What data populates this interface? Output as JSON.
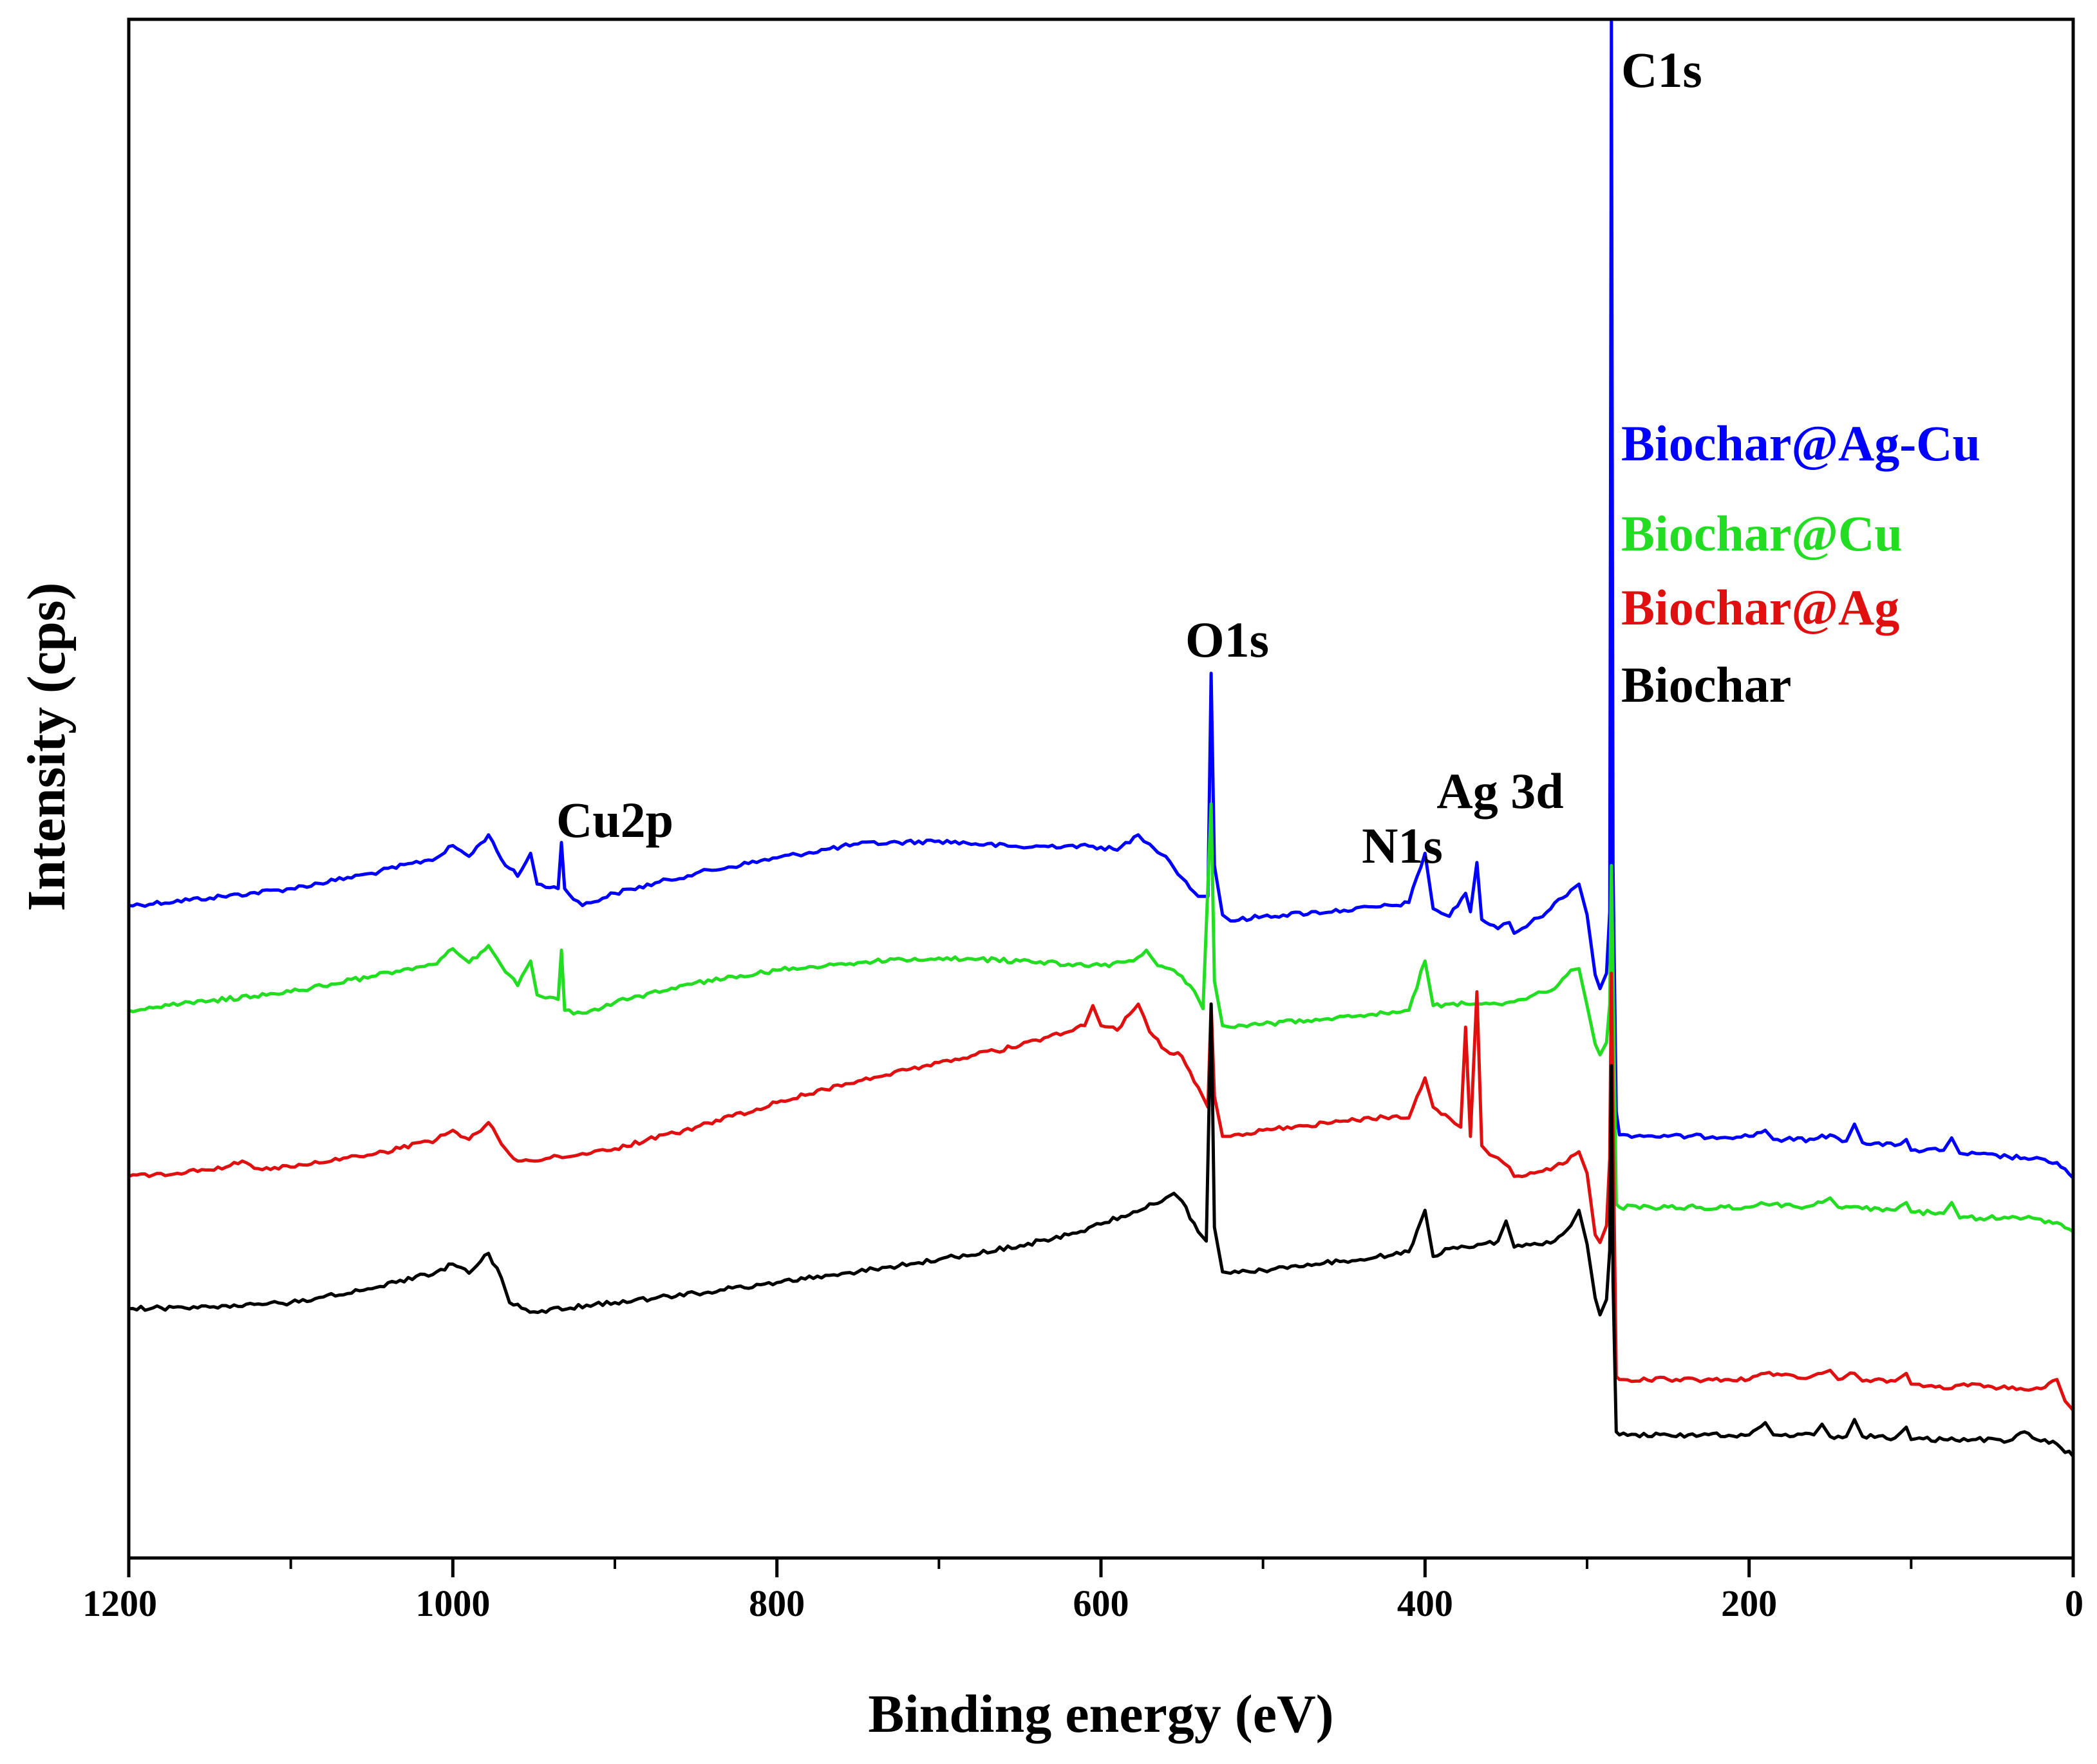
{
  "chart_data": {
    "type": "line",
    "title": "",
    "xlabel": "Binding energy (eV)",
    "ylabel": "Intensity (cps)",
    "xlim": [
      1200,
      0
    ],
    "ylim": [
      0,
      100
    ],
    "x_ticks": [
      1200,
      1000,
      800,
      600,
      400,
      200,
      0
    ],
    "y_ticks_shown": false,
    "legend": {
      "placement": "right, stacked top to bottom"
    },
    "annotations": [
      {
        "text": "C1s",
        "x": 284.8
      },
      {
        "text": "O1s",
        "x": 532
      },
      {
        "text": "Ag 3d",
        "x": 370
      },
      {
        "text": "N1s",
        "x": 400
      },
      {
        "text": "Cu2p",
        "x": 933
      }
    ],
    "series": [
      {
        "name": "Biochar@Ag-Cu",
        "color": "#0000ff",
        "points": [
          [
            1200,
            42.4
          ],
          [
            1150,
            42.9
          ],
          [
            1100,
            43.5
          ],
          [
            1050,
            44.5
          ],
          [
            1010,
            45.5
          ],
          [
            1000,
            46.3
          ],
          [
            990,
            45.6
          ],
          [
            978,
            47
          ],
          [
            970,
            45.4
          ],
          [
            960,
            44.3
          ],
          [
            952,
            45.8
          ],
          [
            948,
            43.8
          ],
          [
            935,
            43.5
          ],
          [
            933,
            46.5
          ],
          [
            931,
            43.5
          ],
          [
            920,
            42.4
          ],
          [
            900,
            43.2
          ],
          [
            850,
            44.5
          ],
          [
            800,
            45.5
          ],
          [
            750,
            46.4
          ],
          [
            700,
            46.6
          ],
          [
            650,
            46.2
          ],
          [
            620,
            46.3
          ],
          [
            600,
            46.2
          ],
          [
            590,
            46
          ],
          [
            577,
            47
          ],
          [
            570,
            46.4
          ],
          [
            560,
            45.6
          ],
          [
            550,
            44.2
          ],
          [
            540,
            43
          ],
          [
            534,
            43
          ],
          [
            532,
            57.5
          ],
          [
            530,
            45
          ],
          [
            525,
            41.8
          ],
          [
            520,
            41.4
          ],
          [
            500,
            41.7
          ],
          [
            450,
            42.1
          ],
          [
            420,
            42.4
          ],
          [
            410,
            42.6
          ],
          [
            400,
            45.8
          ],
          [
            395,
            42.2
          ],
          [
            385,
            41.7
          ],
          [
            375,
            43.2
          ],
          [
            372,
            42
          ],
          [
            368,
            45.2
          ],
          [
            365,
            41.5
          ],
          [
            355,
            40.9
          ],
          [
            348,
            41.3
          ],
          [
            345,
            40.6
          ],
          [
            330,
            41.6
          ],
          [
            310,
            43.4
          ],
          [
            305,
            43.8
          ],
          [
            300,
            41.8
          ],
          [
            295,
            37.9
          ],
          [
            292,
            37
          ],
          [
            288,
            38
          ],
          [
            286,
            42
          ],
          [
            285,
            100
          ],
          [
            284,
            45
          ],
          [
            282,
            29
          ],
          [
            280,
            27.5
          ],
          [
            250,
            27.4
          ],
          [
            200,
            27.4
          ],
          [
            190,
            27.8
          ],
          [
            185,
            27.2
          ],
          [
            160,
            27.2
          ],
          [
            150,
            27.5
          ],
          [
            140,
            27.1
          ],
          [
            135,
            28.2
          ],
          [
            130,
            27
          ],
          [
            110,
            26.8
          ],
          [
            103,
            27.2
          ],
          [
            100,
            26.5
          ],
          [
            80,
            26.5
          ],
          [
            75,
            27.3
          ],
          [
            70,
            26.3
          ],
          [
            30,
            26
          ],
          [
            10,
            25.7
          ],
          [
            0,
            24.7
          ]
        ]
      },
      {
        "name": "Biochar@Cu",
        "color": "#22dd22",
        "points": [
          [
            1200,
            35.6
          ],
          [
            1150,
            36.2
          ],
          [
            1100,
            36.8
          ],
          [
            1050,
            37.8
          ],
          [
            1010,
            38.6
          ],
          [
            1000,
            39.6
          ],
          [
            990,
            38.7
          ],
          [
            978,
            39.8
          ],
          [
            970,
            38.5
          ],
          [
            960,
            37.2
          ],
          [
            952,
            38.8
          ],
          [
            948,
            36.6
          ],
          [
            935,
            36.3
          ],
          [
            933,
            39.5
          ],
          [
            931,
            35.6
          ],
          [
            920,
            35.4
          ],
          [
            900,
            36.1
          ],
          [
            850,
            37.4
          ],
          [
            800,
            38.2
          ],
          [
            750,
            38.7
          ],
          [
            700,
            39
          ],
          [
            650,
            38.8
          ],
          [
            620,
            38.6
          ],
          [
            600,
            38.5
          ],
          [
            580,
            38.8
          ],
          [
            572,
            39.5
          ],
          [
            565,
            38.5
          ],
          [
            555,
            38.2
          ],
          [
            545,
            37.2
          ],
          [
            537,
            35.7
          ],
          [
            532,
            49
          ],
          [
            530,
            37.5
          ],
          [
            525,
            34.6
          ],
          [
            520,
            34.5
          ],
          [
            500,
            34.7
          ],
          [
            450,
            35.2
          ],
          [
            420,
            35.5
          ],
          [
            410,
            35.6
          ],
          [
            400,
            38.8
          ],
          [
            395,
            35.9
          ],
          [
            385,
            36
          ],
          [
            370,
            36
          ],
          [
            355,
            36
          ],
          [
            340,
            36.3
          ],
          [
            320,
            37
          ],
          [
            310,
            38.2
          ],
          [
            305,
            38.3
          ],
          [
            300,
            35.9
          ],
          [
            295,
            33.4
          ],
          [
            292,
            32.7
          ],
          [
            288,
            33.5
          ],
          [
            286,
            36
          ],
          [
            285,
            45
          ],
          [
            284,
            38
          ],
          [
            282,
            23
          ],
          [
            280,
            22.8
          ],
          [
            250,
            22.8
          ],
          [
            200,
            22.8
          ],
          [
            190,
            23
          ],
          [
            170,
            22.8
          ],
          [
            155,
            23.1
          ],
          [
            150,
            23.4
          ],
          [
            145,
            22.8
          ],
          [
            130,
            22.7
          ],
          [
            110,
            22.6
          ],
          [
            103,
            23.1
          ],
          [
            100,
            22.5
          ],
          [
            80,
            22.4
          ],
          [
            75,
            23.1
          ],
          [
            70,
            22.1
          ],
          [
            30,
            22.1
          ],
          [
            10,
            21.8
          ],
          [
            0,
            21.2
          ]
        ]
      },
      {
        "name": "Biochar@Ag",
        "color": "#e01010",
        "points": [
          [
            1200,
            24.8
          ],
          [
            1170,
            25
          ],
          [
            1140,
            25.4
          ],
          [
            1130,
            25.8
          ],
          [
            1120,
            25.3
          ],
          [
            1100,
            25.4
          ],
          [
            1050,
            26.2
          ],
          [
            1010,
            27.2
          ],
          [
            1000,
            27.8
          ],
          [
            990,
            27.2
          ],
          [
            978,
            28.3
          ],
          [
            970,
            26.9
          ],
          [
            960,
            25.8
          ],
          [
            940,
            26
          ],
          [
            900,
            26.6
          ],
          [
            850,
            28
          ],
          [
            800,
            29.6
          ],
          [
            750,
            31
          ],
          [
            700,
            32.2
          ],
          [
            650,
            33.3
          ],
          [
            620,
            34.2
          ],
          [
            610,
            34.6
          ],
          [
            605,
            35.9
          ],
          [
            600,
            34.6
          ],
          [
            590,
            34.3
          ],
          [
            577,
            36
          ],
          [
            570,
            34.2
          ],
          [
            560,
            33
          ],
          [
            550,
            32.6
          ],
          [
            540,
            30.6
          ],
          [
            534,
            29.3
          ],
          [
            532,
            36
          ],
          [
            530,
            30
          ],
          [
            525,
            27.4
          ],
          [
            520,
            27.4
          ],
          [
            500,
            27.8
          ],
          [
            450,
            28.4
          ],
          [
            420,
            28.7
          ],
          [
            410,
            28.6
          ],
          [
            400,
            31.2
          ],
          [
            395,
            29.3
          ],
          [
            385,
            28.6
          ],
          [
            378,
            28
          ],
          [
            375,
            34.5
          ],
          [
            372,
            27.4
          ],
          [
            368,
            36.8
          ],
          [
            365,
            26.8
          ],
          [
            360,
            26.2
          ],
          [
            355,
            26
          ],
          [
            348,
            25.4
          ],
          [
            345,
            24.8
          ],
          [
            330,
            25.1
          ],
          [
            315,
            25.6
          ],
          [
            305,
            26.4
          ],
          [
            300,
            25
          ],
          [
            295,
            21
          ],
          [
            292,
            20.5
          ],
          [
            288,
            21.6
          ],
          [
            286,
            26
          ],
          [
            285,
            38
          ],
          [
            284,
            28
          ],
          [
            282,
            11.8
          ],
          [
            280,
            11.6
          ],
          [
            250,
            11.6
          ],
          [
            200,
            11.6
          ],
          [
            190,
            12
          ],
          [
            170,
            11.7
          ],
          [
            155,
            12
          ],
          [
            150,
            12.2
          ],
          [
            145,
            11.6
          ],
          [
            135,
            12
          ],
          [
            130,
            11.5
          ],
          [
            110,
            11.5
          ],
          [
            103,
            12
          ],
          [
            100,
            11.3
          ],
          [
            80,
            11
          ],
          [
            60,
            11.3
          ],
          [
            40,
            11
          ],
          [
            20,
            11
          ],
          [
            10,
            11.6
          ],
          [
            5,
            10.2
          ],
          [
            0,
            9.6
          ]
        ]
      },
      {
        "name": "Biochar",
        "color": "#000000",
        "points": [
          [
            1200,
            16.2
          ],
          [
            1150,
            16.3
          ],
          [
            1100,
            16.6
          ],
          [
            1050,
            17.5
          ],
          [
            1010,
            18.6
          ],
          [
            1000,
            19.1
          ],
          [
            990,
            18.5
          ],
          [
            978,
            19.8
          ],
          [
            970,
            18.2
          ],
          [
            965,
            16.6
          ],
          [
            950,
            16
          ],
          [
            900,
            16.6
          ],
          [
            850,
            17.2
          ],
          [
            800,
            17.9
          ],
          [
            750,
            18.6
          ],
          [
            700,
            19.4
          ],
          [
            650,
            20.3
          ],
          [
            620,
            21
          ],
          [
            600,
            21.7
          ],
          [
            580,
            22.5
          ],
          [
            560,
            23.4
          ],
          [
            555,
            23.7
          ],
          [
            550,
            23.2
          ],
          [
            540,
            21.2
          ],
          [
            535,
            20.6
          ],
          [
            532,
            36
          ],
          [
            530,
            21.5
          ],
          [
            525,
            18.6
          ],
          [
            520,
            18.5
          ],
          [
            500,
            18.7
          ],
          [
            450,
            19.3
          ],
          [
            420,
            19.7
          ],
          [
            410,
            19.9
          ],
          [
            400,
            22.6
          ],
          [
            395,
            19.6
          ],
          [
            385,
            20.1
          ],
          [
            370,
            20.2
          ],
          [
            355,
            20.6
          ],
          [
            350,
            21.9
          ],
          [
            345,
            20.2
          ],
          [
            320,
            20.6
          ],
          [
            310,
            21.6
          ],
          [
            305,
            22.6
          ],
          [
            300,
            20.4
          ],
          [
            295,
            16.9
          ],
          [
            292,
            15.8
          ],
          [
            288,
            16.8
          ],
          [
            286,
            20
          ],
          [
            285,
            32
          ],
          [
            284,
            18
          ],
          [
            282,
            8.2
          ],
          [
            280,
            8
          ],
          [
            250,
            8
          ],
          [
            200,
            8
          ],
          [
            190,
            8.8
          ],
          [
            185,
            8
          ],
          [
            160,
            8
          ],
          [
            155,
            8.7
          ],
          [
            150,
            7.9
          ],
          [
            140,
            7.9
          ],
          [
            135,
            9
          ],
          [
            130,
            7.9
          ],
          [
            110,
            7.8
          ],
          [
            103,
            8.5
          ],
          [
            100,
            7.7
          ],
          [
            80,
            7.7
          ],
          [
            60,
            7.7
          ],
          [
            40,
            7.6
          ],
          [
            30,
            8.2
          ],
          [
            20,
            7.6
          ],
          [
            10,
            7.4
          ],
          [
            0,
            6.6
          ]
        ]
      }
    ]
  }
}
